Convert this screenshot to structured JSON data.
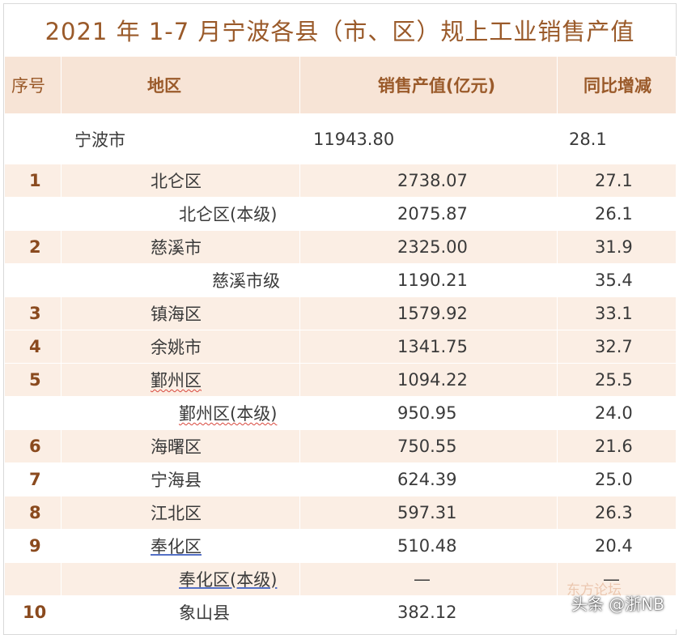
{
  "title": "2021 年 1-7 月宁波各县（市、区）规上工业销售产值",
  "headers": {
    "seq": "序号",
    "area": "地区",
    "sales": "销售产值(亿元)",
    "yoy": "同比增减"
  },
  "city_row": {
    "area": "宁波市",
    "sales": "11943.80",
    "yoy": "28.1"
  },
  "rows": [
    {
      "seq": "1",
      "area": "北仑区",
      "sales": "2738.07",
      "yoy": "27.1"
    },
    {
      "seq": "",
      "area": "北仑区(本级)",
      "sales": "2075.87",
      "yoy": "26.1"
    },
    {
      "seq": "2",
      "area": "慈溪市",
      "sales": "2325.00",
      "yoy": "31.9"
    },
    {
      "seq": "",
      "area": "慈溪市级",
      "sales": "1190.21",
      "yoy": "35.4"
    },
    {
      "seq": "3",
      "area": "镇海区",
      "sales": "1579.92",
      "yoy": "33.1"
    },
    {
      "seq": "4",
      "area": "余姚市",
      "sales": "1341.75",
      "yoy": "32.7"
    },
    {
      "seq": "5",
      "area": "鄞州区",
      "sales": "1094.22",
      "yoy": "25.5"
    },
    {
      "seq": "",
      "area": "鄞州区(本级)",
      "sales": "950.95",
      "yoy": "24.0"
    },
    {
      "seq": "6",
      "area": "海曙区",
      "sales": "750.55",
      "yoy": "21.6"
    },
    {
      "seq": "7",
      "area": "宁海县",
      "sales": "624.39",
      "yoy": "25.0"
    },
    {
      "seq": "8",
      "area": "江北区",
      "sales": "597.31",
      "yoy": "26.3"
    },
    {
      "seq": "9",
      "area": "奉化区",
      "sales": "510.48",
      "yoy": "20.4"
    },
    {
      "seq": "",
      "area": "奉化区(本级)",
      "sales": "—",
      "yoy": "—"
    },
    {
      "seq": "10",
      "area": "象山县",
      "sales": "382.12",
      "yoy": ""
    }
  ],
  "watermark": "头条 @浙NB",
  "watermark_faint": "东方论坛"
}
